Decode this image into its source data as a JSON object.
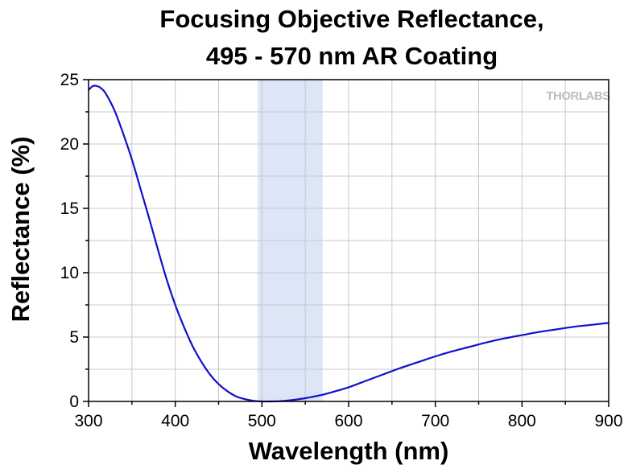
{
  "chart_data": {
    "type": "line",
    "title_line1": "Focusing Objective Reflectance,",
    "title_line2": "495 - 570 nm AR Coating",
    "xlabel": "Wavelength (nm)",
    "ylabel": "Reflectance (%)",
    "xlim": [
      300,
      900
    ],
    "ylim": [
      0,
      25
    ],
    "xticks": [
      300,
      400,
      500,
      600,
      700,
      800,
      900
    ],
    "yticks": [
      0,
      5,
      10,
      15,
      20,
      25
    ],
    "grid": true,
    "band": {
      "x0": 495,
      "x1": 570,
      "color": "#dce6f7"
    },
    "series": [
      {
        "color": "#1010cc",
        "x": [
          300,
          305,
          310,
          315,
          320,
          330,
          340,
          350,
          360,
          370,
          380,
          390,
          400,
          410,
          420,
          430,
          440,
          450,
          460,
          470,
          480,
          490,
          500,
          510,
          520,
          530,
          540,
          550,
          560,
          570,
          580,
          600,
          620,
          640,
          660,
          680,
          700,
          720,
          740,
          760,
          780,
          800,
          820,
          840,
          860,
          880,
          900
        ],
        "y": [
          24.2,
          24.5,
          24.5,
          24.3,
          23.9,
          22.6,
          20.8,
          18.8,
          16.5,
          14.2,
          11.8,
          9.5,
          7.5,
          5.8,
          4.3,
          3.1,
          2.1,
          1.35,
          0.8,
          0.4,
          0.18,
          0.05,
          0.0,
          0.0,
          0.02,
          0.07,
          0.15,
          0.25,
          0.38,
          0.52,
          0.7,
          1.1,
          1.6,
          2.1,
          2.6,
          3.05,
          3.5,
          3.9,
          4.25,
          4.6,
          4.9,
          5.15,
          5.4,
          5.6,
          5.8,
          5.95,
          6.1
        ]
      }
    ]
  },
  "logo": {
    "text": "THORLABS",
    "color": "#bdbdbd"
  }
}
